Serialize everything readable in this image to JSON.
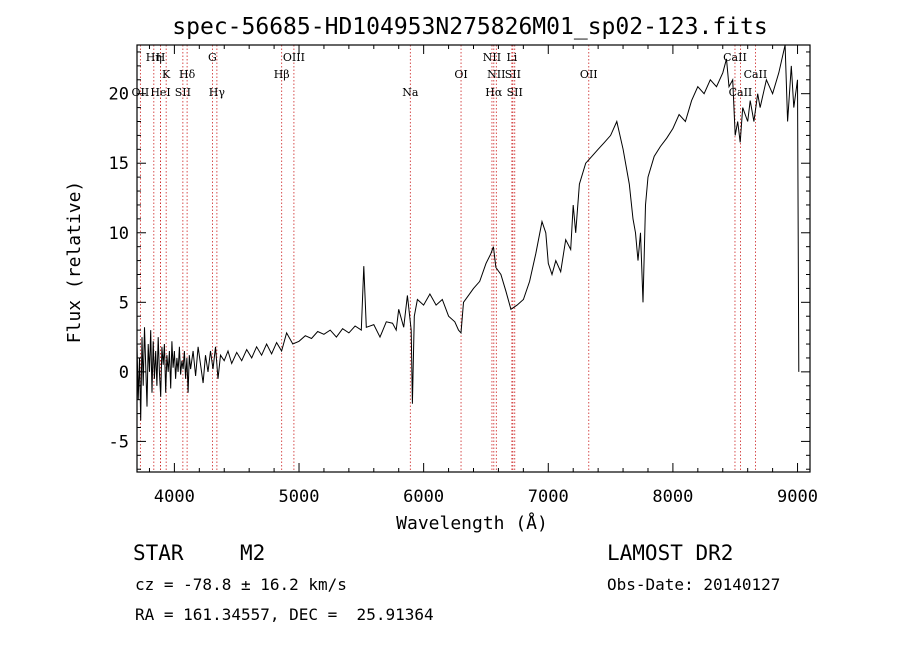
{
  "chart_data": {
    "type": "line",
    "title": "spec-56685-HD104953N275826M01_sp02-123.fits",
    "xlabel": "Wavelength (Å)",
    "ylabel": "Flux (relative)",
    "xlim": [
      3700,
      9100
    ],
    "ylim": [
      -7.2,
      23.5
    ],
    "xticks": [
      4000,
      5000,
      6000,
      7000,
      8000,
      9000
    ],
    "yticks": [
      -5,
      0,
      5,
      10,
      15,
      20
    ],
    "series": [
      {
        "values": [
          [
            3700,
            2.0
          ],
          [
            3710,
            -2.0
          ],
          [
            3720,
            1.0
          ],
          [
            3730,
            -3.5
          ],
          [
            3740,
            2.5
          ],
          [
            3750,
            -1.0
          ],
          [
            3760,
            3.2
          ],
          [
            3770,
            0.5
          ],
          [
            3780,
            -2.5
          ],
          [
            3790,
            2.0
          ],
          [
            3800,
            0.0
          ],
          [
            3810,
            3.0
          ],
          [
            3820,
            -1.5
          ],
          [
            3830,
            2.2
          ],
          [
            3840,
            -0.5
          ],
          [
            3850,
            1.5
          ],
          [
            3860,
            -1.0
          ],
          [
            3870,
            2.5
          ],
          [
            3880,
            0.0
          ],
          [
            3890,
            -1.8
          ],
          [
            3900,
            1.8
          ],
          [
            3910,
            0.5
          ],
          [
            3920,
            2.0
          ],
          [
            3930,
            -1.5
          ],
          [
            3940,
            1.2
          ],
          [
            3950,
            0.0
          ],
          [
            3960,
            1.5
          ],
          [
            3970,
            -1.2
          ],
          [
            3980,
            2.2
          ],
          [
            3990,
            0.3
          ],
          [
            4000,
            1.5
          ],
          [
            4010,
            -0.5
          ],
          [
            4020,
            1.0
          ],
          [
            4030,
            0.0
          ],
          [
            4040,
            1.8
          ],
          [
            4050,
            -0.2
          ],
          [
            4060,
            0.8
          ],
          [
            4070,
            0.2
          ],
          [
            4080,
            1.5
          ],
          [
            4090,
            -0.5
          ],
          [
            4100,
            1.0
          ],
          [
            4110,
            -1.5
          ],
          [
            4120,
            1.2
          ],
          [
            4130,
            0.2
          ],
          [
            4150,
            1.5
          ],
          [
            4170,
            -0.3
          ],
          [
            4190,
            1.8
          ],
          [
            4210,
            0.5
          ],
          [
            4230,
            -0.8
          ],
          [
            4250,
            1.2
          ],
          [
            4270,
            0.0
          ],
          [
            4290,
            1.5
          ],
          [
            4310,
            0.2
          ],
          [
            4330,
            1.8
          ],
          [
            4350,
            -0.5
          ],
          [
            4370,
            1.2
          ],
          [
            4400,
            0.8
          ],
          [
            4430,
            1.5
          ],
          [
            4460,
            0.6
          ],
          [
            4500,
            1.4
          ],
          [
            4540,
            0.8
          ],
          [
            4580,
            1.6
          ],
          [
            4620,
            1.0
          ],
          [
            4660,
            1.8
          ],
          [
            4700,
            1.2
          ],
          [
            4740,
            2.0
          ],
          [
            4780,
            1.3
          ],
          [
            4820,
            2.1
          ],
          [
            4860,
            1.5
          ],
          [
            4900,
            2.8
          ],
          [
            4950,
            2.0
          ],
          [
            5000,
            2.2
          ],
          [
            5050,
            2.6
          ],
          [
            5100,
            2.4
          ],
          [
            5150,
            2.9
          ],
          [
            5200,
            2.7
          ],
          [
            5250,
            3.0
          ],
          [
            5300,
            2.5
          ],
          [
            5350,
            3.1
          ],
          [
            5400,
            2.8
          ],
          [
            5450,
            3.3
          ],
          [
            5500,
            3.0
          ],
          [
            5520,
            7.6
          ],
          [
            5540,
            3.2
          ],
          [
            5600,
            3.4
          ],
          [
            5650,
            2.5
          ],
          [
            5700,
            3.6
          ],
          [
            5750,
            3.5
          ],
          [
            5780,
            3.0
          ],
          [
            5800,
            4.5
          ],
          [
            5840,
            3.2
          ],
          [
            5870,
            5.5
          ],
          [
            5900,
            3.0
          ],
          [
            5910,
            -2.3
          ],
          [
            5925,
            4.0
          ],
          [
            5950,
            5.2
          ],
          [
            6000,
            4.8
          ],
          [
            6050,
            5.6
          ],
          [
            6100,
            4.8
          ],
          [
            6150,
            5.2
          ],
          [
            6200,
            4.0
          ],
          [
            6250,
            3.6
          ],
          [
            6280,
            3.0
          ],
          [
            6300,
            2.8
          ],
          [
            6320,
            5.0
          ],
          [
            6360,
            5.5
          ],
          [
            6400,
            6.0
          ],
          [
            6450,
            6.5
          ],
          [
            6500,
            7.8
          ],
          [
            6540,
            8.5
          ],
          [
            6560,
            9.0
          ],
          [
            6580,
            7.5
          ],
          [
            6620,
            7.0
          ],
          [
            6660,
            5.8
          ],
          [
            6700,
            4.5
          ],
          [
            6750,
            4.8
          ],
          [
            6800,
            5.2
          ],
          [
            6850,
            6.5
          ],
          [
            6900,
            8.5
          ],
          [
            6950,
            10.8
          ],
          [
            6980,
            10.0
          ],
          [
            7000,
            7.8
          ],
          [
            7030,
            7.0
          ],
          [
            7060,
            8.0
          ],
          [
            7100,
            7.2
          ],
          [
            7140,
            9.5
          ],
          [
            7180,
            8.8
          ],
          [
            7200,
            12.0
          ],
          [
            7220,
            10.0
          ],
          [
            7250,
            13.5
          ],
          [
            7300,
            15.0
          ],
          [
            7350,
            15.5
          ],
          [
            7400,
            16.0
          ],
          [
            7450,
            16.5
          ],
          [
            7500,
            17.0
          ],
          [
            7550,
            18.0
          ],
          [
            7600,
            16.0
          ],
          [
            7650,
            13.5
          ],
          [
            7680,
            11.0
          ],
          [
            7700,
            10.0
          ],
          [
            7720,
            8.0
          ],
          [
            7740,
            10.0
          ],
          [
            7760,
            5.0
          ],
          [
            7780,
            12.0
          ],
          [
            7800,
            14.0
          ],
          [
            7850,
            15.5
          ],
          [
            7900,
            16.2
          ],
          [
            7950,
            16.8
          ],
          [
            8000,
            17.5
          ],
          [
            8050,
            18.5
          ],
          [
            8100,
            18.0
          ],
          [
            8150,
            19.5
          ],
          [
            8200,
            20.5
          ],
          [
            8250,
            20.0
          ],
          [
            8300,
            21.0
          ],
          [
            8350,
            20.5
          ],
          [
            8400,
            21.5
          ],
          [
            8430,
            22.5
          ],
          [
            8450,
            20.5
          ],
          [
            8480,
            21.0
          ],
          [
            8500,
            17.0
          ],
          [
            8520,
            18.0
          ],
          [
            8540,
            16.5
          ],
          [
            8560,
            19.0
          ],
          [
            8600,
            18.0
          ],
          [
            8620,
            19.5
          ],
          [
            8650,
            18.0
          ],
          [
            8680,
            20.0
          ],
          [
            8700,
            19.0
          ],
          [
            8750,
            21.0
          ],
          [
            8800,
            20.0
          ],
          [
            8850,
            21.5
          ],
          [
            8900,
            23.5
          ],
          [
            8920,
            18.0
          ],
          [
            8950,
            22.0
          ],
          [
            8970,
            19.0
          ],
          [
            9000,
            21.0
          ],
          [
            9010,
            0.0
          ]
        ]
      }
    ],
    "line_colors": {
      "spectrum": "#000000",
      "markers": "#cc2222",
      "axes": "#000000"
    },
    "line_markers": [
      {
        "label": "Hη",
        "x": 3835,
        "row": 1
      },
      {
        "label": "H",
        "x": 3889,
        "row": 1
      },
      {
        "label": "K",
        "x": 3934,
        "row": 2
      },
      {
        "label": "Hδ",
        "x": 4102,
        "row": 2
      },
      {
        "label": "OII",
        "x": 3727,
        "row": 3
      },
      {
        "label": "HeI",
        "x": 3889,
        "row": 3
      },
      {
        "label": "SII",
        "x": 4068,
        "row": 3
      },
      {
        "label": "G",
        "x": 4305,
        "row": 1
      },
      {
        "label": "Hγ",
        "x": 4341,
        "row": 3
      },
      {
        "label": "OIII",
        "x": 4959,
        "row": 1
      },
      {
        "label": "Hβ",
        "x": 4861,
        "row": 2
      },
      {
        "label": "Na",
        "x": 5893,
        "row": 3
      },
      {
        "label": "OI",
        "x": 6300,
        "row": 2
      },
      {
        "label": "NII",
        "x": 6548,
        "row": 1
      },
      {
        "label": "Li",
        "x": 6708,
        "row": 1
      },
      {
        "label": "NII",
        "x": 6583,
        "row": 2
      },
      {
        "label": "SII",
        "x": 6716,
        "row": 2
      },
      {
        "label": "Hα",
        "x": 6563,
        "row": 3
      },
      {
        "label": "SII",
        "x": 6731,
        "row": 3
      },
      {
        "label": "OII",
        "x": 7325,
        "row": 2
      },
      {
        "label": "CaII",
        "x": 8498,
        "row": 1
      },
      {
        "label": "CaII",
        "x": 8662,
        "row": 2
      },
      {
        "label": "CaII",
        "x": 8542,
        "row": 3
      }
    ]
  },
  "info": {
    "class_label": "STAR",
    "subclass": "M2",
    "survey": "LAMOST DR2",
    "cz": "cz = -78.8 ± 16.2 km/s",
    "obs_date": "Obs-Date: 20140127",
    "coords": "RA = 161.34557, DEC =  25.91364"
  }
}
